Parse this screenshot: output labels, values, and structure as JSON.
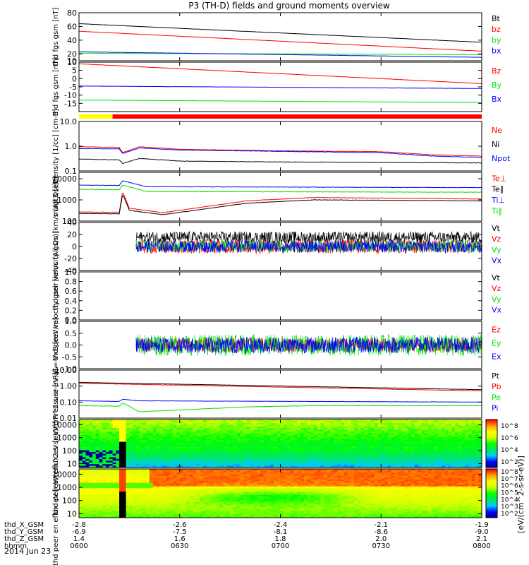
{
  "title": "P3 (TH-D) fields and ground moments overview",
  "colors": {
    "black": "#000000",
    "red": "#ff0000",
    "green": "#00e000",
    "blue": "#0000ff",
    "yellow": "#ffff00",
    "lime": "#00ff00"
  },
  "footer": {
    "date": "2014 Jun 23",
    "ephemeris": [
      {
        "label": "thd_X_GSM",
        "values": [
          "-2.8",
          "-2.6",
          "-2.4",
          "-2.1",
          "-1.9"
        ]
      },
      {
        "label": "thd_Y_GSM",
        "values": [
          "-6.9",
          "-7.5",
          "-8.1",
          "-8.6",
          "-9.0"
        ]
      },
      {
        "label": "thd_Z_GSM",
        "values": [
          "1.4",
          "1.6",
          "1.8",
          "2.0",
          "2.1"
        ]
      },
      {
        "label": "hhmm",
        "values": [
          "0600",
          "0630",
          "0700",
          "0730",
          "0800"
        ]
      }
    ]
  },
  "colorbar_label": "[eV/(cm^2-s-sr-eV)]",
  "colorbar_upper_ticks": [
    "10^8",
    "10^6",
    "10^4",
    "10^2"
  ],
  "colorbar_lower_ticks": [
    "10^8",
    "10^7",
    "10^6",
    "10^5",
    "10^4",
    "10^3",
    "10^2"
  ],
  "chart_data": [
    {
      "id": "fgs_total",
      "type": "line",
      "ylabel": "thd fgs gsm [nT]",
      "ylim": [
        10,
        80
      ],
      "yticks": [
        "80",
        "60",
        "40",
        "20",
        "10"
      ],
      "series": [
        {
          "name": "Bt",
          "color": "black",
          "x": [
            0,
            120
          ],
          "y": [
            64,
            37
          ]
        },
        {
          "name": "bz",
          "color": "red",
          "x": [
            0,
            120
          ],
          "y": [
            53,
            24
          ]
        },
        {
          "name": "by",
          "color": "green",
          "x": [
            0,
            120
          ],
          "y": [
            21,
            19
          ]
        },
        {
          "name": "bx",
          "color": "blue",
          "x": [
            0,
            120
          ],
          "y": [
            23,
            15
          ]
        }
      ]
    },
    {
      "id": "fgs_comp",
      "type": "line",
      "ylabel": "thd fgs gsm [nT]",
      "ylim": [
        -20,
        10
      ],
      "yticks": [
        "10",
        "5",
        "0",
        "-5",
        "-10",
        "-15"
      ],
      "series": [
        {
          "name": "Bz",
          "color": "red",
          "x": [
            0,
            120
          ],
          "y": [
            9,
            -3
          ]
        },
        {
          "name": "By",
          "color": "green",
          "x": [
            0,
            120
          ],
          "y": [
            -13,
            -14.5
          ]
        },
        {
          "name": "Bx",
          "color": "blue",
          "x": [
            0,
            120
          ],
          "y": [
            -4.5,
            -6
          ]
        }
      ]
    },
    {
      "id": "density",
      "type": "line",
      "yscale": "log",
      "ylabel": "Density [1/cc] [cm-3]",
      "ylim": [
        0.1,
        10
      ],
      "yticks": [
        "10.0",
        "1.0",
        "0.1"
      ],
      "series": [
        {
          "name": "Ne",
          "color": "red",
          "x": [
            0,
            12,
            13,
            18,
            30,
            60,
            90,
            105,
            120
          ],
          "y": [
            0.95,
            0.9,
            0.55,
            0.95,
            0.75,
            0.65,
            0.6,
            0.45,
            0.4
          ]
        },
        {
          "name": "Ni",
          "color": "black",
          "x": [
            0,
            12,
            13,
            18,
            30,
            60,
            90,
            120
          ],
          "y": [
            0.3,
            0.28,
            0.2,
            0.32,
            0.25,
            0.23,
            0.22,
            0.21
          ]
        },
        {
          "name": "Npot",
          "color": "blue",
          "x": [
            0,
            12,
            13,
            18,
            30,
            60,
            90,
            105,
            120
          ],
          "y": [
            0.8,
            0.78,
            0.5,
            0.85,
            0.7,
            0.62,
            0.55,
            0.4,
            0.35
          ]
        }
      ]
    },
    {
      "id": "temperature",
      "type": "line",
      "yscale": "log",
      "ylabel": "magt3 [eV]",
      "ylim": [
        100,
        20000
      ],
      "yticks": [
        "10000",
        "1000",
        "100"
      ],
      "series": [
        {
          "name": "Te⊥",
          "color": "red",
          "x": [
            0,
            12,
            13,
            15,
            25,
            50,
            70,
            120
          ],
          "y": [
            270,
            260,
            2500,
            400,
            250,
            900,
            1300,
            1100
          ]
        },
        {
          "name": "Te∥",
          "color": "black",
          "x": [
            0,
            12,
            13,
            15,
            25,
            50,
            70,
            120
          ],
          "y": [
            230,
            220,
            1900,
            320,
            200,
            700,
            1000,
            900
          ]
        },
        {
          "name": "Ti⊥",
          "color": "blue",
          "x": [
            0,
            12,
            13,
            20,
            120
          ],
          "y": [
            5000,
            4800,
            8000,
            4200,
            3800
          ]
        },
        {
          "name": "Ti∥",
          "color": "green",
          "x": [
            0,
            12,
            13,
            20,
            120
          ],
          "y": [
            3200,
            3000,
            5000,
            2500,
            2300
          ]
        }
      ]
    },
    {
      "id": "ion_velocity",
      "type": "line",
      "ylabel": "thd peir velocity gsm [km/s (All Qs)]",
      "ylim": [
        -40,
        40
      ],
      "yticks": [
        "40",
        "20",
        "0",
        "-20",
        "-40"
      ],
      "data_start_x": 17,
      "series": [
        {
          "name": "Vt",
          "color": "black",
          "mean": 15,
          "spread": 10
        },
        {
          "name": "Vz",
          "color": "red",
          "mean": 0,
          "spread": 12
        },
        {
          "name": "Vy",
          "color": "green",
          "mean": 0,
          "spread": 10
        },
        {
          "name": "Vx",
          "color": "blue",
          "mean": 0,
          "spread": 10
        }
      ]
    },
    {
      "id": "electron_velocity",
      "type": "line",
      "ylabel": "thd peer velocity gsm [km/s (All Qs)]",
      "ylim": [
        0,
        1
      ],
      "yticks": [
        "1.0",
        "0.8",
        "0.6",
        "0.4",
        "0.2",
        "0.0"
      ],
      "series": [
        {
          "name": "Vt",
          "color": "black"
        },
        {
          "name": "Vz",
          "color": "red"
        },
        {
          "name": "Vy",
          "color": "green"
        },
        {
          "name": "Vx",
          "color": "blue"
        }
      ]
    },
    {
      "id": "efield",
      "type": "line",
      "ylabel": "E=-VxB [mV/m]",
      "ylim": [
        -1,
        1
      ],
      "yticks": [
        "1.0",
        "0.5",
        "0.0",
        "-0.5",
        "-1.0"
      ],
      "data_start_x": 17,
      "series": [
        {
          "name": "Ez",
          "color": "red",
          "mean": 0,
          "spread": 0.3
        },
        {
          "name": "Ey",
          "color": "green",
          "mean": 0,
          "spread": 0.45
        },
        {
          "name": "Ex",
          "color": "blue",
          "mean": 0,
          "spread": 0.35
        }
      ]
    },
    {
      "id": "pressure",
      "type": "line",
      "yscale": "log",
      "ylabel": "Pressure [nPa]",
      "ylim": [
        0.01,
        10
      ],
      "yticks": [
        "10.00",
        "1.00",
        "0.10",
        "0.01"
      ],
      "series": [
        {
          "name": "Pt",
          "color": "black",
          "x": [
            0,
            120
          ],
          "y": [
            1.7,
            0.6
          ]
        },
        {
          "name": "Pb",
          "color": "red",
          "x": [
            0,
            120
          ],
          "y": [
            1.5,
            0.5
          ]
        },
        {
          "name": "Pe",
          "color": "green",
          "x": [
            0,
            12,
            13,
            18,
            50,
            70,
            120
          ],
          "y": [
            0.06,
            0.055,
            0.09,
            0.025,
            0.05,
            0.06,
            0.06
          ]
        },
        {
          "name": "Pi",
          "color": "blue",
          "x": [
            0,
            12,
            13,
            18,
            120
          ],
          "y": [
            0.12,
            0.11,
            0.15,
            0.12,
            0.1
          ]
        }
      ]
    },
    {
      "id": "ion_spectrogram",
      "type": "heatmap",
      "yscale": "log",
      "ylabel": "thd peir en eflux eV [eV/(cm^2-s-sr-eV)]",
      "ylim": [
        5,
        25000
      ],
      "yticks": [
        "10000",
        "1000",
        "100",
        "10"
      ]
    },
    {
      "id": "electron_spectrogram",
      "type": "heatmap",
      "yscale": "log",
      "ylabel": "thd peer en eflux eV [eV/(cm^2-s-sr-eV)]",
      "ylim": [
        5,
        25000
      ],
      "yticks": [
        "10000",
        "1000",
        "100",
        "10"
      ]
    }
  ]
}
